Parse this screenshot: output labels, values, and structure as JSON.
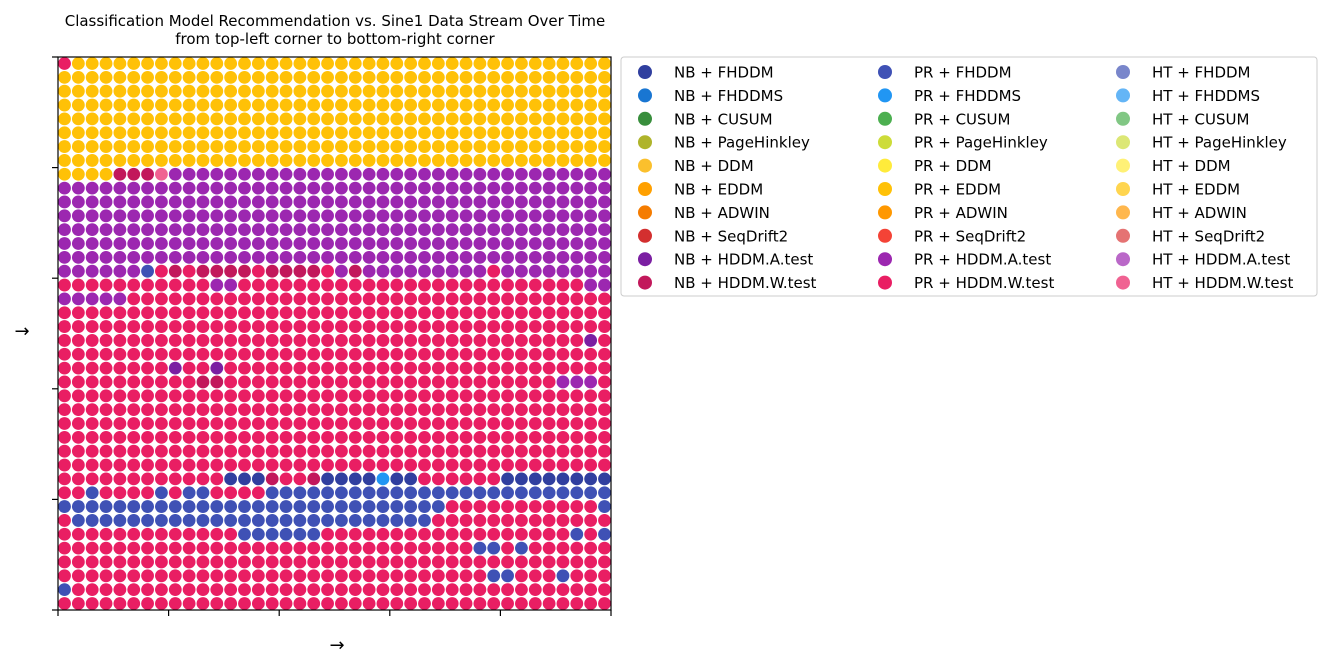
{
  "chart_data": {
    "type": "scatter",
    "title": "Classification Model Recommendation vs. Sine1 Data Stream Over Time",
    "subtitle": "from top-left corner to bottom-right corner",
    "xlabel": "→",
    "ylabel": "→",
    "grid_columns": 40,
    "grid_rows": 40,
    "x_tick_count": 6,
    "y_tick_count": 6,
    "legend_position": "outside-right",
    "legend_columns": 3,
    "legend": [
      {
        "label": "NB + FHDDM",
        "color": "#303f9f"
      },
      {
        "label": "NB + FHDDMS",
        "color": "#1976d2"
      },
      {
        "label": "NB + CUSUM",
        "color": "#388e3c"
      },
      {
        "label": "NB + PageHinkley",
        "color": "#afb42b"
      },
      {
        "label": "NB + DDM",
        "color": "#fbc02d"
      },
      {
        "label": "NB + EDDM",
        "color": "#ffa000"
      },
      {
        "label": "NB + ADWIN",
        "color": "#f57c00"
      },
      {
        "label": "NB + SeqDrift2",
        "color": "#d32f2f"
      },
      {
        "label": "NB + HDDM.A.test",
        "color": "#7b1fa2"
      },
      {
        "label": "NB + HDDM.W.test",
        "color": "#c2185b"
      },
      {
        "label": "PR + FHDDM",
        "color": "#3f51b5"
      },
      {
        "label": "PR + FHDDMS",
        "color": "#2196f3"
      },
      {
        "label": "PR + CUSUM",
        "color": "#4caf50"
      },
      {
        "label": "PR + PageHinkley",
        "color": "#cddc39"
      },
      {
        "label": "PR + DDM",
        "color": "#ffeb3b"
      },
      {
        "label": "PR + EDDM",
        "color": "#ffc107"
      },
      {
        "label": "PR + ADWIN",
        "color": "#ff9800"
      },
      {
        "label": "PR + SeqDrift2",
        "color": "#f44336"
      },
      {
        "label": "PR + HDDM.A.test",
        "color": "#9c27b0"
      },
      {
        "label": "PR + HDDM.W.test",
        "color": "#e91e63"
      },
      {
        "label": "HT + FHDDM",
        "color": "#7986cb"
      },
      {
        "label": "HT + FHDDMS",
        "color": "#64b5f6"
      },
      {
        "label": "HT + CUSUM",
        "color": "#81c784"
      },
      {
        "label": "HT + PageHinkley",
        "color": "#dce775"
      },
      {
        "label": "HT + DDM",
        "color": "#fff176"
      },
      {
        "label": "HT + EDDM",
        "color": "#ffd54f"
      },
      {
        "label": "HT + ADWIN",
        "color": "#ffb74d"
      },
      {
        "label": "HT + SeqDrift2",
        "color": "#e57373"
      },
      {
        "label": "HT + HDDM.A.test",
        "color": "#ba68c8"
      },
      {
        "label": "HT + HDDM.W.test",
        "color": "#f06292"
      }
    ],
    "row_segments": [
      [
        [
          15,
          40
        ]
      ],
      [
        [
          15,
          40
        ]
      ],
      [
        [
          15,
          40
        ]
      ],
      [
        [
          15,
          40
        ]
      ],
      [
        [
          15,
          40
        ]
      ],
      [
        [
          15,
          40
        ]
      ],
      [
        [
          15,
          40
        ]
      ],
      [
        [
          15,
          40
        ]
      ],
      [
        [
          15,
          4
        ],
        [
          9,
          2
        ],
        [
          29,
          1
        ],
        [
          18,
          33
        ]
      ],
      [
        [
          18,
          40
        ]
      ],
      [
        [
          18,
          40
        ]
      ],
      [
        [
          18,
          40
        ]
      ],
      [
        [
          18,
          40
        ]
      ],
      [
        [
          18,
          40
        ]
      ],
      [
        [
          18,
          40
        ]
      ],
      [
        [
          18,
          6
        ],
        [
          10,
          1
        ],
        [
          19,
          1
        ],
        [
          9,
          1
        ],
        [
          19,
          2
        ],
        [
          9,
          3
        ],
        [
          19,
          1
        ],
        [
          9,
          2
        ],
        [
          19,
          1
        ],
        [
          9,
          1
        ],
        [
          19,
          1
        ],
        [
          18,
          11
        ],
        [
          19,
          1
        ],
        [
          18,
          10
        ]
      ],
      [
        [
          19,
          11
        ],
        [
          18,
          2
        ],
        [
          19,
          25
        ],
        [
          18,
          2
        ]
      ],
      [
        [
          18,
          5
        ],
        [
          19,
          35
        ]
      ],
      [
        [
          19,
          40
        ]
      ],
      [
        [
          19,
          40
        ]
      ],
      [
        [
          19,
          38
        ],
        [
          8,
          1
        ],
        [
          19,
          1
        ]
      ],
      [
        [
          19,
          40
        ]
      ],
      [
        [
          19,
          11
        ],
        [
          8,
          1
        ],
        [
          19,
          28
        ]
      ],
      [
        [
          19,
          10
        ],
        [
          9,
          2
        ],
        [
          19,
          24
        ],
        [
          18,
          3
        ],
        [
          19,
          1
        ]
      ],
      [
        [
          19,
          40
        ]
      ],
      [
        [
          19,
          40
        ]
      ],
      [
        [
          19,
          40
        ]
      ],
      [
        [
          19,
          40
        ]
      ],
      [
        [
          19,
          40
        ]
      ],
      [
        [
          19,
          40
        ]
      ],
      [
        [
          19,
          12
        ],
        [
          0,
          3
        ],
        [
          19,
          3
        ],
        [
          9,
          1
        ],
        [
          0,
          4
        ],
        [
          11,
          1
        ],
        [
          0,
          2
        ],
        [
          19,
          6
        ],
        [
          0,
          8
        ],
        [
          16,
          1
        ]
      ],
      [
        [
          19,
          2
        ],
        [
          10,
          1
        ],
        [
          19,
          4
        ],
        [
          10,
          1
        ],
        [
          19,
          1
        ],
        [
          10,
          2
        ],
        [
          19,
          4
        ],
        [
          10,
          26
        ]
      ],
      [
        [
          10,
          28
        ],
        [
          19,
          11
        ],
        [
          10,
          1
        ]
      ],
      [
        [
          19,
          1
        ],
        [
          10,
          26
        ],
        [
          19,
          13
        ]
      ],
      [
        [
          19,
          13
        ],
        [
          10,
          6
        ],
        [
          19,
          21
        ]
      ],
      [
        [
          19,
          30
        ],
        [
          10,
          2
        ],
        [
          19,
          8
        ]
      ],
      [
        [
          19,
          40
        ]
      ],
      [
        [
          19,
          40
        ]
      ],
      [
        [
          19,
          40
        ]
      ],
      [
        [
          19,
          40
        ]
      ]
    ],
    "point_overrides": [
      {
        "col": 0,
        "row": 0,
        "series": 19
      },
      {
        "col": 6,
        "row": 8,
        "series": 9
      },
      {
        "col": 5,
        "row": 8,
        "series": 9
      },
      {
        "col": 7,
        "row": 8,
        "series": 29
      },
      {
        "col": 10,
        "row": 15,
        "series": 9
      },
      {
        "col": 13,
        "row": 15,
        "series": 9
      },
      {
        "col": 16,
        "row": 15,
        "series": 9
      },
      {
        "col": 17,
        "row": 15,
        "series": 9
      },
      {
        "col": 21,
        "row": 15,
        "series": 9
      },
      {
        "col": 8,
        "row": 22,
        "series": 8
      },
      {
        "col": 10,
        "row": 23,
        "series": 9
      },
      {
        "col": 11,
        "row": 23,
        "series": 9
      },
      {
        "col": 15,
        "row": 30,
        "series": 9
      },
      {
        "col": 0,
        "row": 38,
        "series": 10
      },
      {
        "col": 39,
        "row": 16,
        "series": 18
      },
      {
        "col": 38,
        "row": 16,
        "series": 18
      },
      {
        "col": 38,
        "row": 20,
        "series": 8
      },
      {
        "col": 36,
        "row": 23,
        "series": 18
      },
      {
        "col": 37,
        "row": 23,
        "series": 18
      },
      {
        "col": 38,
        "row": 23,
        "series": 18
      },
      {
        "col": 2,
        "row": 32,
        "series": 10
      },
      {
        "col": 7,
        "row": 32,
        "series": 10
      },
      {
        "col": 9,
        "row": 32,
        "series": 10
      },
      {
        "col": 10,
        "row": 32,
        "series": 10
      },
      {
        "col": 24,
        "row": 32,
        "series": 10
      },
      {
        "col": 33,
        "row": 35,
        "series": 10
      },
      {
        "col": 37,
        "row": 34,
        "series": 10
      },
      {
        "col": 39,
        "row": 34,
        "series": 10
      },
      {
        "col": 32,
        "row": 37,
        "series": 10
      },
      {
        "col": 31,
        "row": 37,
        "series": 10
      },
      {
        "col": 36,
        "row": 37,
        "series": 10
      }
    ]
  }
}
